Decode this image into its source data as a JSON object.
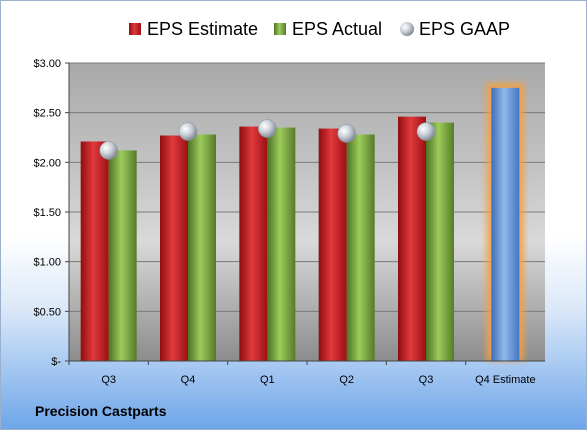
{
  "chart_data": {
    "type": "bar",
    "categories": [
      "Q3",
      "Q4",
      "Q1",
      "Q2",
      "Q3",
      "Q4 Estimate"
    ],
    "series": [
      {
        "name": "EPS Estimate",
        "values": [
          2.21,
          2.27,
          2.36,
          2.34,
          2.46,
          null
        ],
        "color": "#c0181c"
      },
      {
        "name": "EPS Actual",
        "values": [
          2.12,
          2.28,
          2.35,
          2.28,
          2.4,
          null
        ],
        "color": "#7aa33a"
      },
      {
        "name": "EPS GAAP",
        "values": [
          2.12,
          2.31,
          2.34,
          2.29,
          2.31,
          null
        ],
        "color": "#a9b3c3",
        "marker": "sphere"
      },
      {
        "name": "Q4 Estimate",
        "values": [
          null,
          null,
          null,
          null,
          null,
          2.75
        ],
        "color": "#5b8fd8",
        "highlight": "#f5a040"
      }
    ],
    "legend": {
      "placement": "top",
      "items": [
        "EPS Estimate",
        "EPS Actual",
        "EPS GAAP"
      ]
    },
    "y_ticks": [
      "$-",
      "$0.50",
      "$1.00",
      "$1.50",
      "$2.00",
      "$2.50",
      "$3.00"
    ],
    "ylim": [
      0,
      3.0
    ],
    "grid": true
  },
  "company": "Precision Castparts"
}
